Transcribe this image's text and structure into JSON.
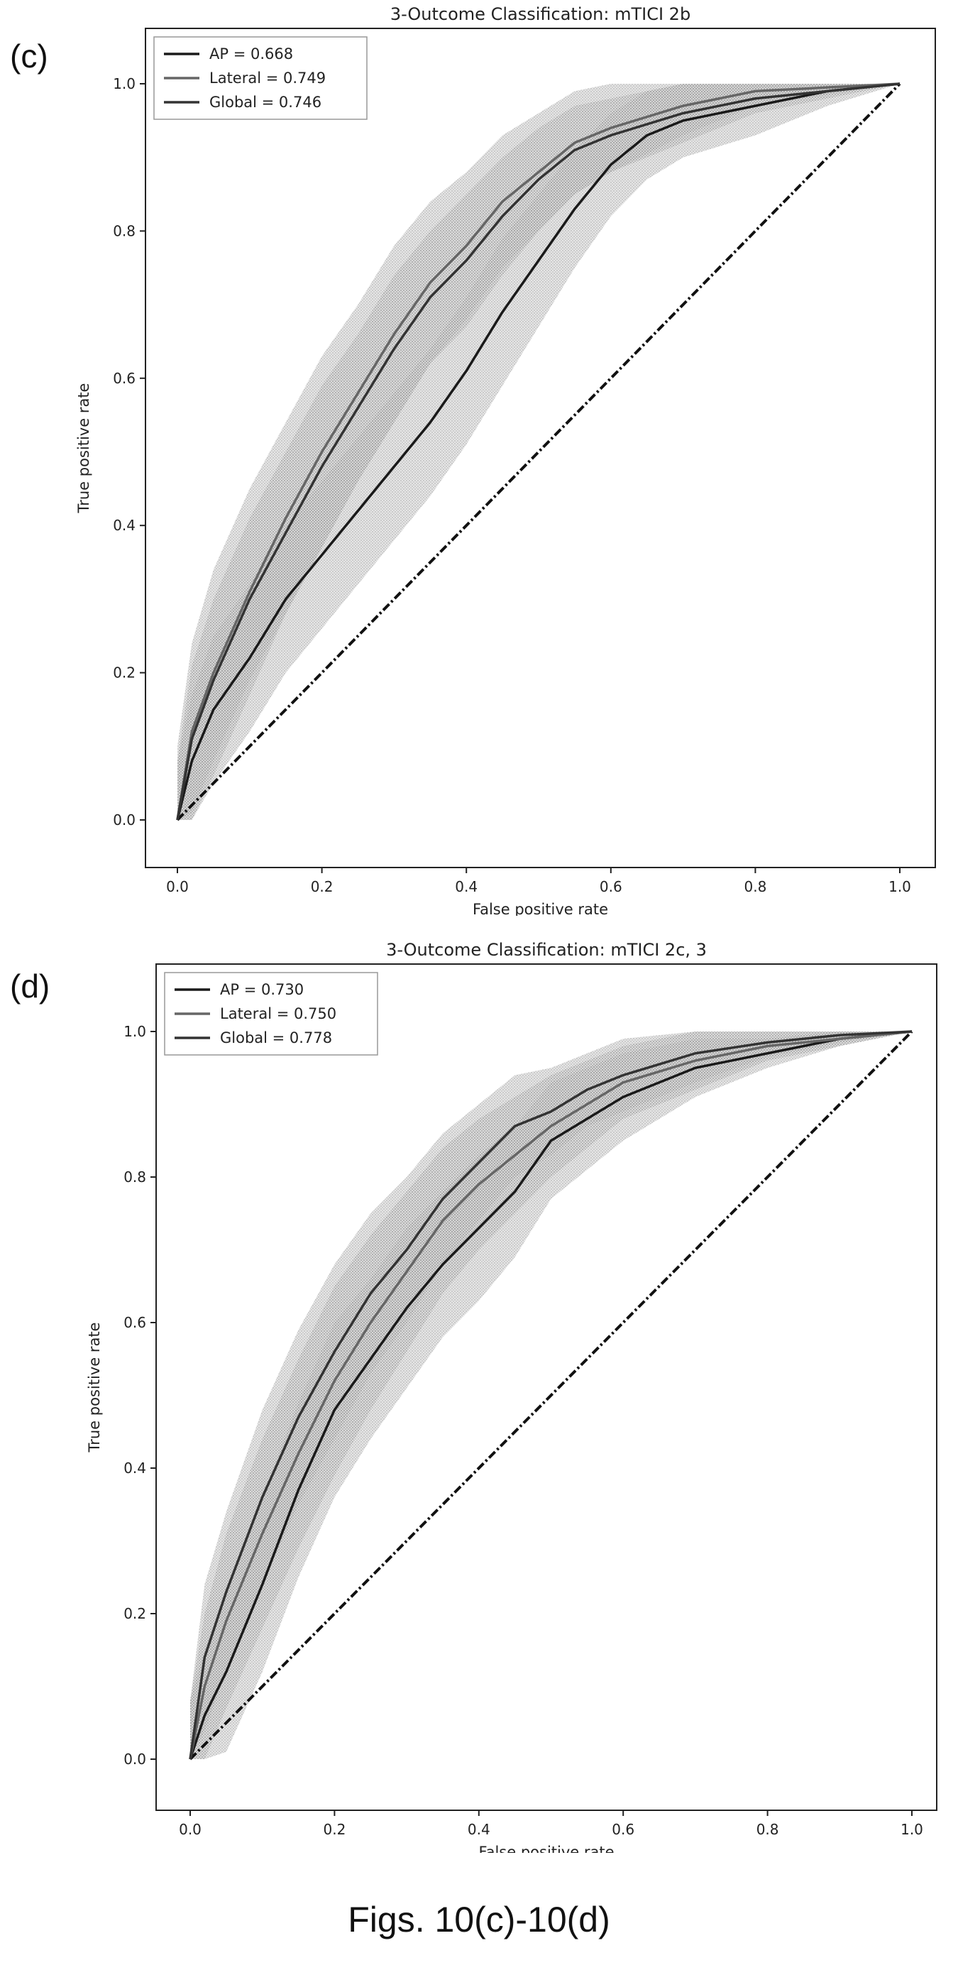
{
  "chart_data": [
    {
      "panel_label": "(c)",
      "type": "line",
      "title": "3-Outcome Classification: mTICI 2b",
      "xlabel": "False positive rate",
      "ylabel": "True positive rate",
      "xlim": [
        0,
        1
      ],
      "ylim": [
        0,
        1
      ],
      "xticks": [
        "0.0",
        "0.2",
        "0.4",
        "0.6",
        "0.8",
        "1.0"
      ],
      "yticks": [
        "0.0",
        "0.2",
        "0.4",
        "0.6",
        "0.8",
        "1.0"
      ],
      "grid": false,
      "legend_position": "top-left",
      "series": [
        {
          "name": "AP = 0.668",
          "x": [
            0,
            0.02,
            0.05,
            0.1,
            0.15,
            0.2,
            0.25,
            0.3,
            0.35,
            0.4,
            0.45,
            0.5,
            0.55,
            0.6,
            0.65,
            0.7,
            0.8,
            0.9,
            1.0
          ],
          "y": [
            0,
            0.08,
            0.15,
            0.22,
            0.3,
            0.36,
            0.42,
            0.48,
            0.54,
            0.61,
            0.69,
            0.76,
            0.83,
            0.89,
            0.93,
            0.95,
            0.97,
            0.99,
            1.0
          ],
          "band": [
            0.08,
            0.09,
            0.1,
            0.1,
            0.1,
            0.1,
            0.1,
            0.1,
            0.1,
            0.1,
            0.1,
            0.09,
            0.08,
            0.07,
            0.06,
            0.05,
            0.04,
            0.02,
            0
          ]
        },
        {
          "name": "Lateral = 0.749",
          "x": [
            0,
            0.02,
            0.05,
            0.1,
            0.15,
            0.2,
            0.25,
            0.3,
            0.35,
            0.4,
            0.45,
            0.5,
            0.55,
            0.6,
            0.7,
            0.8,
            0.9,
            1.0
          ],
          "y": [
            0,
            0.12,
            0.2,
            0.31,
            0.41,
            0.5,
            0.58,
            0.66,
            0.73,
            0.78,
            0.84,
            0.88,
            0.92,
            0.94,
            0.97,
            0.99,
            0.995,
            1.0
          ],
          "band": [
            0.1,
            0.12,
            0.14,
            0.14,
            0.13,
            0.13,
            0.12,
            0.12,
            0.11,
            0.1,
            0.09,
            0.08,
            0.07,
            0.06,
            0.04,
            0.02,
            0.01,
            0
          ]
        },
        {
          "name": "Global = 0.746",
          "x": [
            0,
            0.02,
            0.05,
            0.1,
            0.15,
            0.2,
            0.25,
            0.3,
            0.35,
            0.4,
            0.45,
            0.5,
            0.55,
            0.6,
            0.7,
            0.8,
            0.9,
            1.0
          ],
          "y": [
            0,
            0.11,
            0.19,
            0.3,
            0.39,
            0.48,
            0.56,
            0.64,
            0.71,
            0.76,
            0.82,
            0.87,
            0.91,
            0.93,
            0.96,
            0.98,
            0.99,
            1.0
          ],
          "band": [
            0.08,
            0.1,
            0.11,
            0.11,
            0.11,
            0.11,
            0.1,
            0.1,
            0.09,
            0.09,
            0.08,
            0.07,
            0.06,
            0.05,
            0.04,
            0.02,
            0.01,
            0
          ]
        }
      ],
      "reference_line": {
        "x": [
          0,
          1
        ],
        "y": [
          0,
          1
        ],
        "style": "dash-dot"
      }
    },
    {
      "panel_label": "(d)",
      "type": "line",
      "title": "3-Outcome Classification: mTICI 2c, 3",
      "xlabel": "False positive rate",
      "ylabel": "True positive rate",
      "xlim": [
        0,
        1
      ],
      "ylim": [
        0,
        1
      ],
      "xticks": [
        "0.0",
        "0.2",
        "0.4",
        "0.6",
        "0.8",
        "1.0"
      ],
      "yticks": [
        "0.0",
        "0.2",
        "0.4",
        "0.6",
        "0.8",
        "1.0"
      ],
      "grid": false,
      "legend_position": "top-left",
      "series": [
        {
          "name": "AP = 0.730",
          "x": [
            0,
            0.02,
            0.05,
            0.1,
            0.15,
            0.2,
            0.25,
            0.3,
            0.35,
            0.4,
            0.45,
            0.5,
            0.55,
            0.6,
            0.7,
            0.8,
            0.9,
            1.0
          ],
          "y": [
            0,
            0.06,
            0.12,
            0.24,
            0.37,
            0.48,
            0.55,
            0.62,
            0.68,
            0.73,
            0.78,
            0.85,
            0.88,
            0.91,
            0.95,
            0.97,
            0.99,
            1.0
          ],
          "band": [
            0.08,
            0.09,
            0.11,
            0.12,
            0.12,
            0.12,
            0.11,
            0.11,
            0.1,
            0.1,
            0.09,
            0.08,
            0.07,
            0.06,
            0.04,
            0.02,
            0.01,
            0
          ]
        },
        {
          "name": "Lateral = 0.750",
          "x": [
            0,
            0.02,
            0.05,
            0.1,
            0.15,
            0.2,
            0.25,
            0.3,
            0.35,
            0.4,
            0.45,
            0.5,
            0.55,
            0.6,
            0.7,
            0.8,
            0.9,
            1.0
          ],
          "y": [
            0,
            0.1,
            0.19,
            0.31,
            0.42,
            0.52,
            0.6,
            0.67,
            0.74,
            0.79,
            0.83,
            0.87,
            0.9,
            0.93,
            0.96,
            0.98,
            0.99,
            1.0
          ],
          "band": [
            0.08,
            0.1,
            0.12,
            0.13,
            0.13,
            0.13,
            0.12,
            0.11,
            0.1,
            0.09,
            0.08,
            0.07,
            0.06,
            0.05,
            0.04,
            0.02,
            0.01,
            0
          ]
        },
        {
          "name": "Global = 0.778",
          "x": [
            0,
            0.02,
            0.05,
            0.1,
            0.15,
            0.2,
            0.25,
            0.3,
            0.35,
            0.4,
            0.45,
            0.5,
            0.55,
            0.6,
            0.7,
            0.8,
            0.9,
            1.0
          ],
          "y": [
            0,
            0.14,
            0.23,
            0.36,
            0.47,
            0.56,
            0.64,
            0.7,
            0.77,
            0.82,
            0.87,
            0.89,
            0.92,
            0.94,
            0.97,
            0.985,
            0.995,
            1.0
          ],
          "band": [
            0.08,
            0.1,
            0.11,
            0.12,
            0.12,
            0.12,
            0.11,
            0.1,
            0.09,
            0.08,
            0.07,
            0.06,
            0.05,
            0.05,
            0.04,
            0.02,
            0.01,
            0
          ]
        }
      ],
      "reference_line": {
        "x": [
          0,
          1
        ],
        "y": [
          0,
          1
        ],
        "style": "dash-dot"
      }
    }
  ],
  "caption": "Figs. 10(c)-10(d)",
  "colors": {
    "band_fill": "#9a9a9a",
    "line_colors": [
      "#1a1a1a",
      "#666666",
      "#333333"
    ],
    "reference": "#111111"
  }
}
